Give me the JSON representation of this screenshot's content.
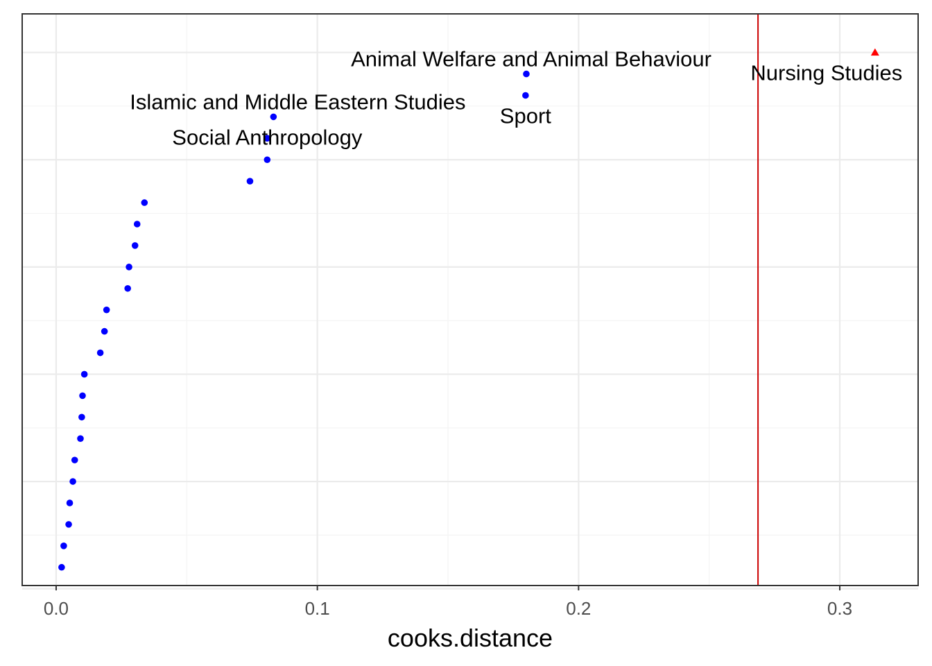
{
  "chart_data": {
    "type": "scatter",
    "title": "",
    "xlabel": "cooks.distance",
    "ylabel": "",
    "xlim": [
      -0.013,
      0.33
    ],
    "ylim": [
      0.15,
      26.8
    ],
    "x_ticks": [
      "0.0",
      "0.1",
      "0.2",
      "0.3"
    ],
    "x_tick_values": [
      0.0,
      0.1,
      0.2,
      0.3
    ],
    "grid": true,
    "threshold_line": {
      "x": 0.2687,
      "color": "#cc0000"
    },
    "points": [
      {
        "rank": 1,
        "x": 0.0021
      },
      {
        "rank": 2,
        "x": 0.0029
      },
      {
        "rank": 3,
        "x": 0.0048
      },
      {
        "rank": 4,
        "x": 0.0052
      },
      {
        "rank": 5,
        "x": 0.0064
      },
      {
        "rank": 6,
        "x": 0.0071
      },
      {
        "rank": 7,
        "x": 0.0093
      },
      {
        "rank": 8,
        "x": 0.0098
      },
      {
        "rank": 9,
        "x": 0.0101
      },
      {
        "rank": 10,
        "x": 0.0108
      },
      {
        "rank": 11,
        "x": 0.0169
      },
      {
        "rank": 12,
        "x": 0.0185
      },
      {
        "rank": 13,
        "x": 0.0193
      },
      {
        "rank": 14,
        "x": 0.0274
      },
      {
        "rank": 15,
        "x": 0.0279
      },
      {
        "rank": 16,
        "x": 0.0302
      },
      {
        "rank": 17,
        "x": 0.031
      },
      {
        "rank": 18,
        "x": 0.0338
      },
      {
        "rank": 19,
        "x": 0.0742
      },
      {
        "rank": 20,
        "x": 0.0808,
        "label": "Social Anthropology"
      },
      {
        "rank": 21,
        "x": 0.0808
      },
      {
        "rank": 22,
        "x": 0.0832,
        "label": "Islamic and Middle Eastern Studies"
      },
      {
        "rank": 23,
        "x": 0.1797,
        "label": "Sport"
      },
      {
        "rank": 24,
        "x": 0.18,
        "label": "Animal Welfare and Animal Behaviour"
      },
      {
        "rank": 25,
        "x": 0.3135,
        "label": "Nursing Studies",
        "highlight": true
      }
    ],
    "colors": {
      "point": "#0000ff",
      "highlight": "#ff0000",
      "grid_major": "#ebebeb",
      "grid_minor": "#f4f4f4",
      "border": "#333333"
    }
  }
}
